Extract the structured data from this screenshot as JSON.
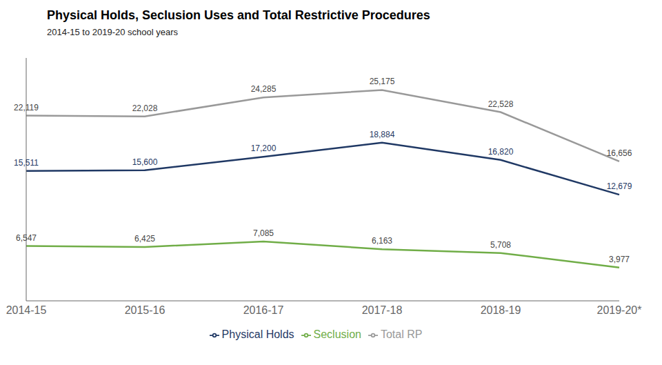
{
  "chart_data": {
    "type": "line",
    "title": "Physical Holds, Seclusion Uses and Total Restrictive Procedures",
    "subtitle": "2014-15 to 2019-20 school years",
    "categories": [
      "2014-15",
      "2015-16",
      "2016-17",
      "2017-18",
      "2018-19",
      "2019-20*"
    ],
    "series": [
      {
        "name": "Physical Holds",
        "color": "#1f3864",
        "values": [
          15511,
          15600,
          17200,
          18884,
          16820,
          12679
        ],
        "value_labels": [
          "15,511",
          "15,600",
          "17,200",
          "18,884",
          "16,820",
          "12,679"
        ]
      },
      {
        "name": "Seclusion",
        "color": "#70ad47",
        "values": [
          6547,
          6425,
          7085,
          6163,
          5708,
          3977
        ],
        "value_labels": [
          "6,547",
          "6,425",
          "7,085",
          "6,163",
          "5,708",
          "3,977"
        ]
      },
      {
        "name": "Total RP",
        "color": "#999999",
        "values": [
          22119,
          22028,
          24285,
          25175,
          22528,
          16656
        ],
        "value_labels": [
          "22,119",
          "22,028",
          "24,285",
          "25,175",
          "22,528",
          "16,656"
        ]
      }
    ],
    "ylim": [
      0,
      29000
    ],
    "data_labels": true,
    "tick_labels": "x",
    "grid": false,
    "legend": "bottom"
  }
}
